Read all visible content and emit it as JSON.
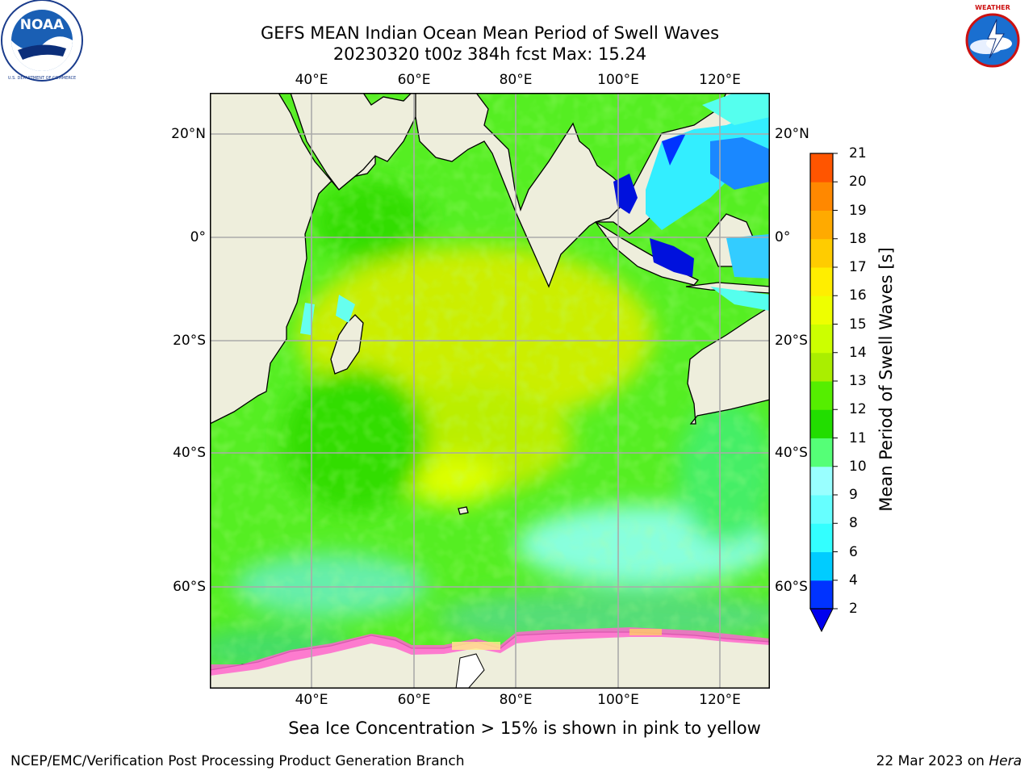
{
  "title": {
    "line1": "GEFS MEAN Indian Ocean Mean Period of Swell Waves",
    "line2": "20230320 t00z 384h fcst   Max: 15.24"
  },
  "logos": {
    "left": {
      "text": "NOAA",
      "ring_text": "NATIONAL OCEANIC AND ATMOSPHERIC ADMINISTRATION · U.S. DEPARTMENT OF COMMERCE",
      "icon": "noaa-logo"
    },
    "right": {
      "ring_text": "NATIONAL WEATHER SERVICE",
      "icon": "nws-logo"
    }
  },
  "map": {
    "lon_labels": [
      "40°E",
      "60°E",
      "80°E",
      "100°E",
      "120°E"
    ],
    "lat_labels_left": [
      "20°N",
      "0°",
      "20°S",
      "40°S",
      "60°S"
    ],
    "lat_labels_right": [
      "20°N",
      "0°",
      "20°S",
      "40°S",
      "60°S"
    ],
    "extent_lon": [
      20,
      130
    ],
    "extent_lat": [
      -75,
      28
    ],
    "grid": true
  },
  "colorbar": {
    "label": "Mean Period of Swell Waves [s]",
    "ticks": [
      "2",
      "4",
      "6",
      "8",
      "9",
      "10",
      "11",
      "12",
      "13",
      "14",
      "15",
      "16",
      "17",
      "18",
      "19",
      "20",
      "21"
    ],
    "colors": [
      "#0033ff",
      "#00ccff",
      "#33ffff",
      "#66ffff",
      "#99ffff",
      "#55ff77",
      "#22dd00",
      "#55ee00",
      "#aaee00",
      "#ccff00",
      "#eeff00",
      "#ffee00",
      "#ffcc00",
      "#ffaa00",
      "#ff8800",
      "#ff5500",
      "#ff2200",
      "#ff0000"
    ],
    "extend_color": "#0000ee"
  },
  "caption": "Sea Ice Concentration > 15% is shown in pink to yellow",
  "footer": {
    "left": "NCEP/EMC/Verification Post Processing Product Generation Branch",
    "right_date": "22 Mar 2023 on ",
    "right_host": "Hera"
  }
}
